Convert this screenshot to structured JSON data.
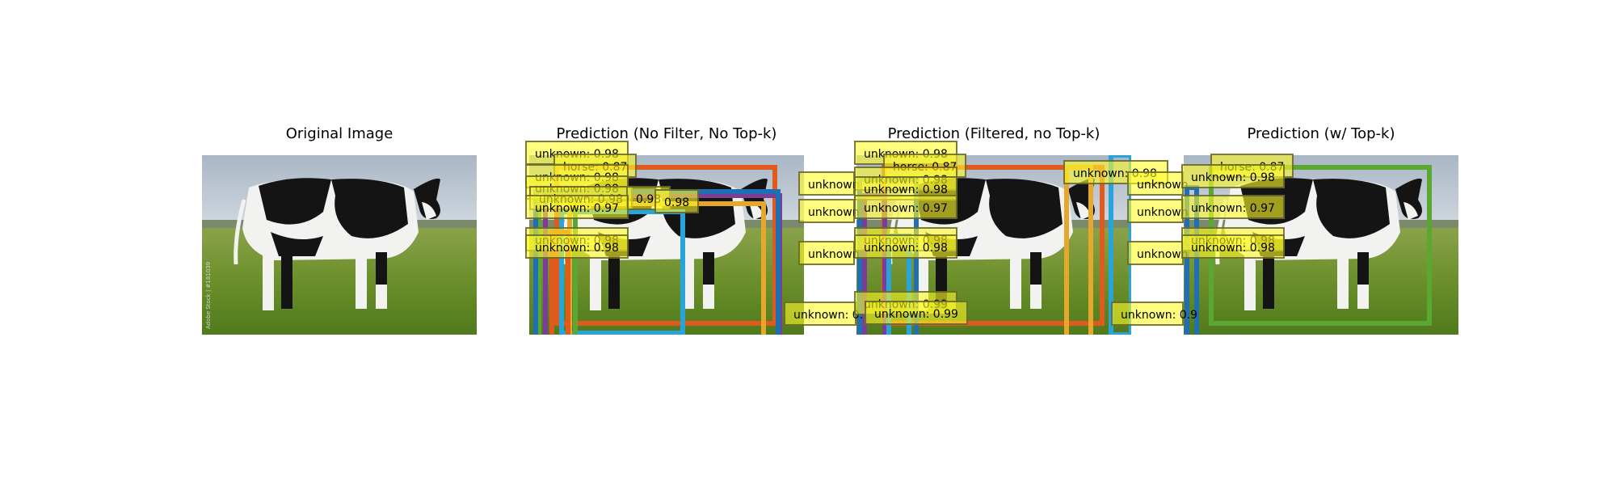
{
  "panels": [
    {
      "title": "Original Image"
    },
    {
      "title": "Prediction (No Filter, No Top-k)"
    },
    {
      "title": "Prediction (Filtered, no Top-k)"
    },
    {
      "title": "Prediction (w/ Top-k)"
    }
  ],
  "colors": {
    "sky": "#b7c3cf",
    "grass": "#6e8e2a",
    "cow_black": "#141414",
    "cow_white": "#f2f2f0",
    "orange": "#e05a1e",
    "purple": "#7d3c98",
    "cyan": "#2aa3d8",
    "green": "#5aa832",
    "yellow_box": "#e6a82a",
    "blue": "#1f6fb2",
    "label_fill": "#fffa28"
  },
  "watermark": "Adobe Stock | #181039",
  "labels": {
    "p2": [
      "unknown: 0.98",
      "horse: 0.87",
      "unknown: 0.98",
      "unknown: 0.98",
      "unknown: 0.98",
      "0.98",
      "0.98",
      "unknown: 0.97",
      "unknown: 0.98",
      "unknown: 0.98",
      "unknown",
      "unknown",
      "unknown",
      "unknown: 0."
    ],
    "p3": [
      "unknown: 0.98",
      "horse: 0.87",
      "unknown: 0.98",
      "unknown: 0.98",
      "unknown: 0.97",
      "unknown: 0.98",
      "unknown: 0.98",
      "unknown: 0.99",
      "unknown: 0.99",
      "unknown: 0.98",
      "unknown",
      "unknown",
      "unknown",
      "unknown: 0.9"
    ],
    "p4": [
      "horse: 0.87",
      "unknown: 0.98",
      "unknown: 0.97",
      "unknown: 0.98",
      "unknown: 0.98"
    ]
  }
}
